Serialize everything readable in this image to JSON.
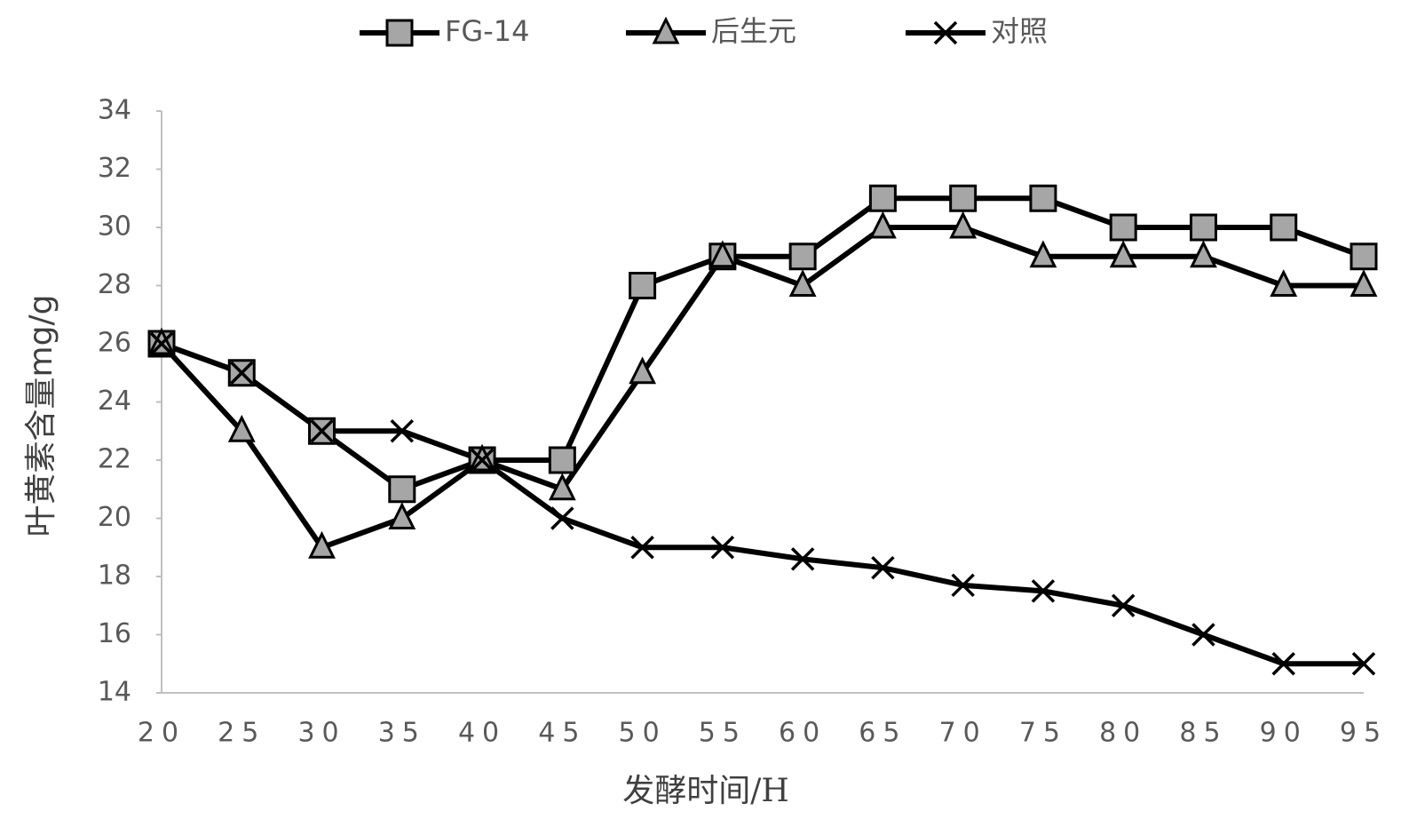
{
  "chart_data": {
    "type": "line",
    "y_label": "叶黄素含量mg/g",
    "x_label": "发酵时间/H",
    "categories": [
      20,
      25,
      30,
      35,
      40,
      45,
      50,
      55,
      60,
      65,
      70,
      75,
      80,
      85,
      90,
      95
    ],
    "series": [
      {
        "name": "FG-14",
        "color": "#000000",
        "marker": "square",
        "marker_color": "#a6a6a6",
        "values": [
          26,
          25,
          23,
          21,
          22,
          22,
          28,
          29,
          29,
          31,
          31,
          31,
          30,
          30,
          30,
          29
        ]
      },
      {
        "name": "后生元",
        "color": "#000000",
        "marker": "triangle",
        "marker_color": "#a6a6a6",
        "values": [
          26,
          23,
          19,
          20,
          22,
          21,
          25,
          29,
          28,
          30,
          30,
          29,
          29,
          29,
          28,
          28
        ]
      },
      {
        "name": "对照",
        "color": "#000000",
        "marker": "x",
        "marker_color": "#000000",
        "values": [
          26,
          25,
          23,
          23,
          22,
          20,
          19,
          19,
          18.6,
          18.3,
          17.7,
          17.5,
          17,
          16,
          15,
          15
        ]
      }
    ],
    "ylim": [
      14,
      34
    ],
    "yticks": [
      14,
      16,
      18,
      20,
      22,
      24,
      26,
      28,
      30,
      32,
      34
    ],
    "grid": false,
    "legend": "top"
  }
}
